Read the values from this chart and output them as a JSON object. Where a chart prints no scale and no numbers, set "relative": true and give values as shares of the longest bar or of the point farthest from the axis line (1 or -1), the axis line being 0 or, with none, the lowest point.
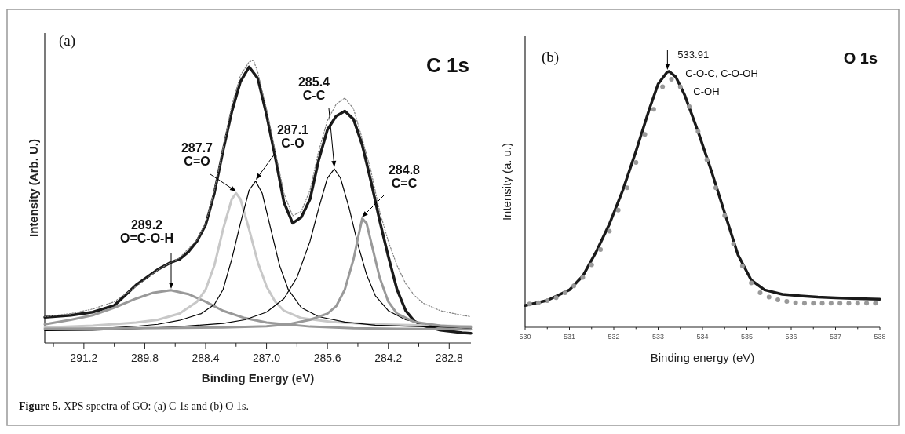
{
  "chart_data": [
    {
      "type": "line",
      "relative": true,
      "xlabel": "Binding Energy (eV)",
      "ylabel": "Intensity (Arb. U.)",
      "xlim": [
        292.1,
        282.3
      ],
      "xticks": [
        {
          "value": 291.9,
          "label": null
        },
        291.2,
        {
          "value": 290.5,
          "label": null
        },
        289.8,
        {
          "value": 289.1,
          "label": null
        },
        288.4,
        {
          "value": 287.7,
          "label": null
        },
        {
          "value": 287.0,
          "label": "287.0"
        },
        {
          "value": 286.3,
          "label": null
        },
        285.6,
        {
          "value": 284.9,
          "label": null
        },
        284.2,
        {
          "value": 283.5,
          "label": null
        },
        282.8
      ],
      "series": [
        {
          "color": "#1a1a1a",
          "x": [
            292.1,
            291.5,
            291,
            290.5,
            290,
            289.5,
            289.2,
            289,
            288.8,
            288.6,
            288.4,
            288.2,
            288,
            287.8,
            287.6,
            287.4,
            287.2,
            287,
            286.8,
            286.6,
            286.4,
            286.2,
            286,
            285.8,
            285.6,
            285.4,
            285.2,
            285,
            284.8,
            284.6,
            284.4,
            284.2,
            284,
            283.8,
            283.6,
            283.4,
            283,
            282.5,
            282.3
          ],
          "values": [
            0.091,
            0.098,
            0.109,
            0.133,
            0.205,
            0.26,
            0.285,
            0.296,
            0.322,
            0.36,
            0.418,
            0.53,
            0.68,
            0.818,
            0.925,
            0.977,
            0.936,
            0.808,
            0.658,
            0.498,
            0.424,
            0.445,
            0.509,
            0.648,
            0.755,
            0.803,
            0.821,
            0.792,
            0.701,
            0.573,
            0.434,
            0.306,
            0.189,
            0.114,
            0.077,
            0.061,
            0.045,
            0.036,
            0.034
          ]
        },
        {
          "color": "#808080",
          "line_style": "dotted",
          "x": [
            292.1,
            291.5,
            291,
            290.5,
            290,
            289.5,
            289.2,
            289,
            288.6,
            288.4,
            288.2,
            288,
            287.8,
            287.6,
            287.4,
            287.3,
            287.2,
            287,
            286.8,
            286.6,
            286.4,
            286.2,
            286,
            285.8,
            285.6,
            285.4,
            285.2,
            285,
            284.8,
            284.6,
            284.4,
            284.2,
            284,
            283.8,
            283.6,
            283.4,
            283,
            282.5,
            282.3
          ],
          "values": [
            0.093,
            0.104,
            0.12,
            0.146,
            0.2,
            0.258,
            0.285,
            0.301,
            0.365,
            0.424,
            0.541,
            0.69,
            0.84,
            0.947,
            0.995,
            1.0,
            0.957,
            0.829,
            0.68,
            0.53,
            0.45,
            0.466,
            0.541,
            0.68,
            0.787,
            0.845,
            0.867,
            0.829,
            0.723,
            0.61,
            0.466,
            0.36,
            0.274,
            0.21,
            0.168,
            0.141,
            0.114,
            0.098,
            0.093
          ]
        },
        {
          "color": "#999999",
          "x": [
            292.1,
            291.5,
            291,
            290.5,
            290,
            289.6,
            289.2,
            288.8,
            288.4,
            288,
            287.5,
            287,
            286,
            285,
            284,
            282.3
          ],
          "values": [
            0.066,
            0.082,
            0.098,
            0.125,
            0.157,
            0.178,
            0.187,
            0.173,
            0.146,
            0.114,
            0.088,
            0.072,
            0.058,
            0.052,
            0.05,
            0.048
          ]
        },
        {
          "color": "#c8c8c8",
          "x": [
            292.1,
            291,
            290,
            289.5,
            289,
            288.6,
            288.4,
            288.2,
            288,
            287.8,
            287.7,
            287.6,
            287.4,
            287.2,
            287,
            286.8,
            286.6,
            286.2,
            285.5,
            284.5,
            283,
            282.3
          ],
          "values": [
            0.055,
            0.061,
            0.072,
            0.082,
            0.104,
            0.146,
            0.189,
            0.274,
            0.402,
            0.509,
            0.53,
            0.509,
            0.402,
            0.285,
            0.2,
            0.146,
            0.114,
            0.088,
            0.074,
            0.066,
            0.061,
            0.059
          ]
        },
        {
          "color": "#000000",
          "x": [
            292.1,
            291,
            290,
            289.5,
            289,
            288.5,
            288.2,
            288,
            287.8,
            287.6,
            287.4,
            287.25,
            287.1,
            286.9,
            286.7,
            286.5,
            286.2,
            285.8,
            285.2,
            284.5,
            283.5,
            282.3
          ],
          "values": [
            0.045,
            0.05,
            0.059,
            0.066,
            0.08,
            0.104,
            0.136,
            0.189,
            0.296,
            0.424,
            0.541,
            0.573,
            0.53,
            0.402,
            0.274,
            0.189,
            0.125,
            0.093,
            0.074,
            0.063,
            0.058,
            0.053
          ]
        },
        {
          "color": "#000000",
          "x": [
            292.1,
            291,
            290,
            289,
            288,
            287.5,
            287,
            286.6,
            286.3,
            286,
            285.8,
            285.6,
            285.44,
            285.3,
            285.1,
            284.9,
            284.7,
            284.5,
            284.2,
            283.8,
            283.2,
            282.3
          ],
          "values": [
            0.043,
            0.045,
            0.05,
            0.058,
            0.069,
            0.082,
            0.109,
            0.157,
            0.232,
            0.36,
            0.477,
            0.584,
            0.616,
            0.584,
            0.477,
            0.349,
            0.242,
            0.168,
            0.114,
            0.082,
            0.063,
            0.052
          ]
        },
        {
          "color": "#999999",
          "x": [
            292.1,
            290,
            288,
            287,
            286.5,
            286,
            285.6,
            285.4,
            285.2,
            285,
            284.9,
            284.8,
            284.7,
            284.6,
            284.4,
            284.2,
            284,
            283.6,
            283,
            282.3
          ],
          "values": [
            0.05,
            0.052,
            0.055,
            0.059,
            0.066,
            0.082,
            0.104,
            0.13,
            0.189,
            0.296,
            0.37,
            0.44,
            0.424,
            0.36,
            0.232,
            0.146,
            0.104,
            0.074,
            0.061,
            0.055
          ]
        }
      ],
      "annotations": [
        "(a)",
        "C 1s",
        "Figure 5. XPS spectra of GO: (a) C 1s and (b) O 1s.",
        "289.2\nO=C-O-H",
        "287.7\nC=O",
        "287.1\nC-O",
        "285.4\nC-C",
        "284.8\nC=C"
      ]
    },
    {
      "type": "line",
      "relative": true,
      "xlabel": "Binding energy (eV)",
      "ylabel": "Intensity (a. u.)",
      "xlim": [
        530,
        538
      ],
      "xticks": [
        530,
        {
          "value": 530.5,
          "label": null
        },
        531,
        {
          "value": 531.5,
          "label": null
        },
        532,
        {
          "value": 532.5,
          "label": null
        },
        533,
        {
          "value": 533.5,
          "label": null
        },
        534,
        {
          "value": 534.5,
          "label": null
        },
        535,
        {
          "value": 535.5,
          "label": null
        },
        536,
        {
          "value": 536.5,
          "label": null
        },
        537,
        {
          "value": 537.5,
          "label": null
        },
        538
      ],
      "series": [
        {
          "type": "scatter",
          "marker": "circle",
          "color": "#999999",
          "x": [
            530.1,
            530.3,
            530.5,
            530.7,
            530.9,
            531.1,
            531.3,
            531.5,
            531.7,
            531.9,
            532.1,
            532.3,
            532.5,
            532.7,
            532.9,
            533.1,
            533.3,
            533.5,
            533.7,
            533.9,
            534.1,
            534.3,
            534.5,
            534.7,
            534.9,
            535.1,
            535.3,
            535.5,
            535.7,
            535.9,
            536.1,
            536.3,
            536.5,
            536.7,
            536.9,
            537.1,
            537.3,
            537.5,
            537.7,
            537.9
          ],
          "values": [
            0.091,
            0.096,
            0.104,
            0.116,
            0.135,
            0.162,
            0.195,
            0.244,
            0.304,
            0.376,
            0.458,
            0.545,
            0.644,
            0.754,
            0.852,
            0.94,
            0.969,
            0.94,
            0.863,
            0.765,
            0.655,
            0.545,
            0.436,
            0.326,
            0.239,
            0.173,
            0.135,
            0.118,
            0.107,
            0.101,
            0.096,
            0.094,
            0.094,
            0.094,
            0.094,
            0.094,
            0.094,
            0.094,
            0.094,
            0.094
          ]
        },
        {
          "type": "line",
          "color": "#1a1a1a",
          "x": [
            530,
            530.5,
            531,
            531.3,
            531.6,
            531.9,
            532.2,
            532.5,
            532.8,
            533,
            533.2,
            533.25,
            533.4,
            533.6,
            533.9,
            534.2,
            534.5,
            534.8,
            535.1,
            535.4,
            535.8,
            536.2,
            536.6,
            537,
            537.5,
            538
          ],
          "values": [
            0.085,
            0.105,
            0.146,
            0.2,
            0.294,
            0.403,
            0.534,
            0.688,
            0.852,
            0.951,
            0.997,
            1.0,
            0.978,
            0.907,
            0.765,
            0.611,
            0.447,
            0.283,
            0.184,
            0.146,
            0.129,
            0.123,
            0.118,
            0.115,
            0.112,
            0.11
          ]
        }
      ],
      "annotations": [
        "(b)",
        "O 1s",
        {
          "text": "533.91\nC-O-C, C-O-OH\nC-OH",
          "x": 533.21,
          "y": 1.0
        }
      ]
    }
  ]
}
